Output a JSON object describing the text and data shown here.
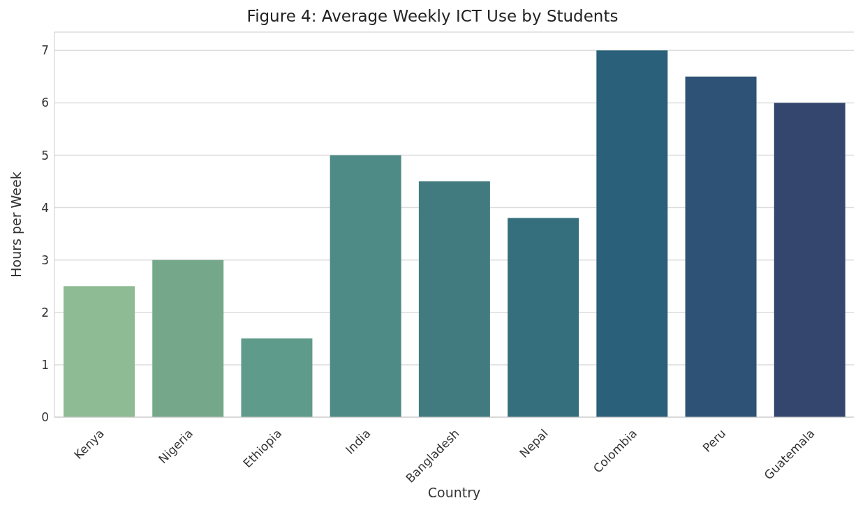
{
  "chart_data": {
    "type": "bar",
    "title": "Figure 4: Average Weekly ICT Use by Students",
    "xlabel": "Country",
    "ylabel": "Hours per Week",
    "categories": [
      "Kenya",
      "Nigeria",
      "Ethiopia",
      "India",
      "Bangladesh",
      "Nepal",
      "Colombia",
      "Peru",
      "Guatemala"
    ],
    "values": [
      2.5,
      3,
      1.5,
      5,
      4.5,
      3.8,
      7,
      6.5,
      6
    ],
    "colors": [
      "#8fbb94",
      "#75a88b",
      "#5f9b8a",
      "#4e8a86",
      "#417b80",
      "#356e7c",
      "#2a6079",
      "#2d5276",
      "#34466e"
    ],
    "ylim": [
      0,
      7.35
    ],
    "yticks": [
      0,
      1,
      2,
      3,
      4,
      5,
      6,
      7
    ],
    "grid": "y"
  }
}
